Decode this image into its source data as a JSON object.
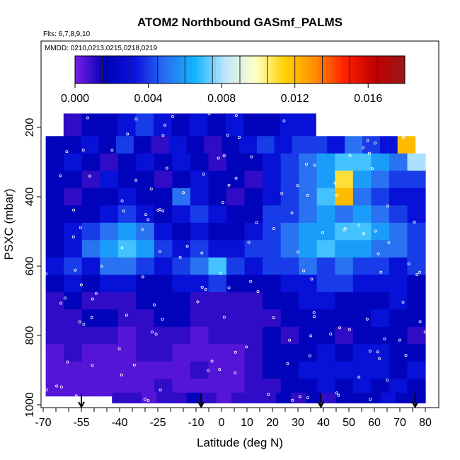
{
  "chart_data": {
    "type": "heatmap",
    "title": "ATOM2 Northbound GASmf_PALMS",
    "subtitle_flights": "Flts: 6,7,8,9,10",
    "subtitle_dates": "MMDD: 0210,0213,0215,0218,0219",
    "xlabel": "Latitude (deg N)",
    "ylabel": "PSXC (mbar)",
    "xlim": [
      -70,
      80
    ],
    "ylim": [
      1000,
      0
    ],
    "x_ticks": [
      -70,
      -55,
      -40,
      -25,
      -10,
      0,
      10,
      20,
      30,
      40,
      50,
      60,
      70,
      80
    ],
    "y_ticks": [
      200,
      400,
      600,
      800,
      1000
    ],
    "colorbar": {
      "range": [
        0,
        0.018
      ],
      "tick_values": [
        0,
        0.004,
        0.008,
        0.012,
        0.016
      ],
      "tick_labels": [
        "0.000",
        "0.004",
        "0.008",
        "0.012",
        "0.016"
      ],
      "colors": [
        "#7b1ee8",
        "#0000b0",
        "#0a14e0",
        "#2a6ef0",
        "#12b4ff",
        "#bfe6ff",
        "#ffffc8",
        "#ffd200",
        "#ff8c00",
        "#ff2000",
        "#c00000",
        "#9a1818"
      ]
    },
    "flight_tracks_marked_at_latitude": [
      -55,
      -8,
      39,
      76
    ],
    "pressure_levels": [
      {
        "p": 200,
        "lat_start": -62,
        "lat_end": 37,
        "values": [
          0.001,
          0.002,
          0.002,
          0.003,
          0.004,
          0.003,
          0.002,
          0.003,
          0.002,
          0.003,
          0.002,
          0.002,
          0.003,
          0.003
        ]
      },
      {
        "p": 250,
        "lat_start": -69,
        "lat_end": 76,
        "values": [
          0.002,
          0.002,
          0.003,
          0.002,
          0.004,
          0.002,
          0.001,
          0.003,
          0.002,
          0.001,
          0.002,
          0.003,
          0.004,
          0.003,
          0.004,
          0.004,
          0.003,
          0.005,
          0.004,
          0.003,
          0.012
        ]
      },
      {
        "p": 300,
        "lat_start": -69,
        "lat_end": 80,
        "values": [
          0.002,
          0.003,
          0.002,
          0.001,
          0.002,
          0.003,
          0.002,
          0.003,
          0.002,
          0.001,
          0.002,
          0.002,
          0.003,
          0.004,
          0.005,
          0.006,
          0.007,
          0.007,
          0.006,
          0.005,
          0.008
        ]
      },
      {
        "p": 350,
        "lat_start": -69,
        "lat_end": 80,
        "values": [
          0.002,
          0.002,
          0.001,
          0.003,
          0.002,
          0.002,
          0.001,
          0.002,
          0.003,
          0.002,
          0.002,
          0.001,
          0.003,
          0.004,
          0.005,
          0.006,
          0.011,
          0.006,
          0.005,
          0.004,
          0.004
        ]
      },
      {
        "p": 400,
        "lat_start": -69,
        "lat_end": 80,
        "values": [
          0.002,
          0.001,
          0.002,
          0.002,
          0.003,
          0.002,
          0.002,
          0.005,
          0.003,
          0.002,
          0.001,
          0.002,
          0.003,
          0.004,
          0.005,
          0.007,
          0.012,
          0.005,
          0.004,
          0.003,
          0.003
        ]
      },
      {
        "p": 450,
        "lat_start": -69,
        "lat_end": 80,
        "values": [
          0.002,
          0.002,
          0.002,
          0.003,
          0.004,
          0.003,
          0.002,
          0.003,
          0.004,
          0.003,
          0.002,
          0.002,
          0.004,
          0.004,
          0.005,
          0.006,
          0.005,
          0.006,
          0.005,
          0.004,
          0.003
        ]
      },
      {
        "p": 500,
        "lat_start": -69,
        "lat_end": 80,
        "values": [
          0.002,
          0.003,
          0.004,
          0.005,
          0.006,
          0.005,
          0.003,
          0.002,
          0.003,
          0.002,
          0.002,
          0.003,
          0.004,
          0.005,
          0.006,
          0.006,
          0.007,
          0.007,
          0.006,
          0.005,
          0.004
        ]
      },
      {
        "p": 550,
        "lat_start": -69,
        "lat_end": 80,
        "values": [
          0.002,
          0.003,
          0.005,
          0.006,
          0.007,
          0.006,
          0.004,
          0.003,
          0.004,
          0.003,
          0.003,
          0.004,
          0.004,
          0.005,
          0.006,
          0.007,
          0.006,
          0.006,
          0.005,
          0.005,
          0.004
        ]
      },
      {
        "p": 600,
        "lat_start": -69,
        "lat_end": 80,
        "values": [
          0.003,
          0.004,
          0.003,
          0.005,
          0.005,
          0.004,
          0.003,
          0.004,
          0.005,
          0.007,
          0.004,
          0.003,
          0.004,
          0.004,
          0.005,
          0.004,
          0.005,
          0.004,
          0.004,
          0.003,
          0.004
        ]
      },
      {
        "p": 650,
        "lat_start": -69,
        "lat_end": 80,
        "values": [
          0.002,
          0.003,
          0.002,
          0.003,
          0.003,
          0.002,
          0.002,
          0.003,
          0.003,
          0.004,
          0.002,
          0.002,
          0.002,
          0.003,
          0.003,
          0.004,
          0.004,
          0.003,
          0.003,
          0.003,
          0.002
        ]
      },
      {
        "p": 700,
        "lat_start": -69,
        "lat_end": 80,
        "values": [
          0.001,
          0.002,
          0.001,
          0.001,
          0.001,
          0.002,
          0.002,
          0.002,
          0.001,
          0.001,
          0.001,
          0.001,
          0.002,
          0.002,
          0.003,
          0.003,
          0.002,
          0.002,
          0.002,
          0.003,
          0.002
        ]
      },
      {
        "p": 750,
        "lat_start": -69,
        "lat_end": 80,
        "values": [
          0.001,
          0.001,
          0.002,
          0.002,
          0.001,
          0.001,
          0.002,
          0.002,
          0.001,
          0.001,
          0.001,
          0.001,
          0.001,
          0.002,
          0.002,
          0.002,
          0.002,
          0.002,
          0.003,
          0.002,
          0.002
        ]
      },
      {
        "p": 800,
        "lat_start": -69,
        "lat_end": 80,
        "values": [
          0.001,
          0.001,
          0.001,
          0.001,
          0.0005,
          0.001,
          0.001,
          0.001,
          0.0005,
          0.001,
          0.001,
          0.001,
          0.002,
          0.001,
          0.002,
          0.002,
          0.001,
          0.002,
          0.002,
          0.002,
          0.001
        ]
      },
      {
        "p": 850,
        "lat_start": -69,
        "lat_end": 80,
        "values": [
          0.0005,
          0.001,
          0.0005,
          0.0005,
          0.0005,
          0.001,
          0.001,
          0.0005,
          0.0005,
          0.0005,
          0.0005,
          0.001,
          0.002,
          0.002,
          0.002,
          0.003,
          0.002,
          0.003,
          0.003,
          0.002,
          0.002
        ]
      },
      {
        "p": 900,
        "lat_start": -69,
        "lat_end": 80,
        "values": [
          0.0005,
          0.0005,
          0.0005,
          0.0005,
          0.0005,
          0.0005,
          0.0005,
          0.0005,
          0.001,
          0.0005,
          0.0005,
          0.001,
          0.002,
          0.002,
          0.003,
          0.003,
          0.003,
          0.003,
          0.003,
          0.002,
          0.003
        ]
      },
      {
        "p": 950,
        "lat_start": -69,
        "lat_end": 80,
        "values": [
          0.0005,
          0.0005,
          0.0005,
          0.0005,
          0.0005,
          0.0005,
          0.001,
          0.0005,
          0.0005,
          0.0005,
          0.0005,
          0.001,
          0.001,
          0.002,
          0.002,
          0.003,
          0.002,
          0.003,
          0.002,
          0.003,
          0.002
        ]
      },
      {
        "p": 990,
        "lat_start": -43,
        "lat_end": 80,
        "values": [
          0.001,
          0.001,
          0.0005,
          0.001,
          0.001,
          0.002,
          0.001,
          0.0005,
          0.001,
          0.001,
          0.001,
          0.002,
          0.001,
          0.002,
          0.001,
          0.002,
          0.002,
          0.002,
          0.003,
          0.002,
          0.002
        ]
      }
    ]
  }
}
